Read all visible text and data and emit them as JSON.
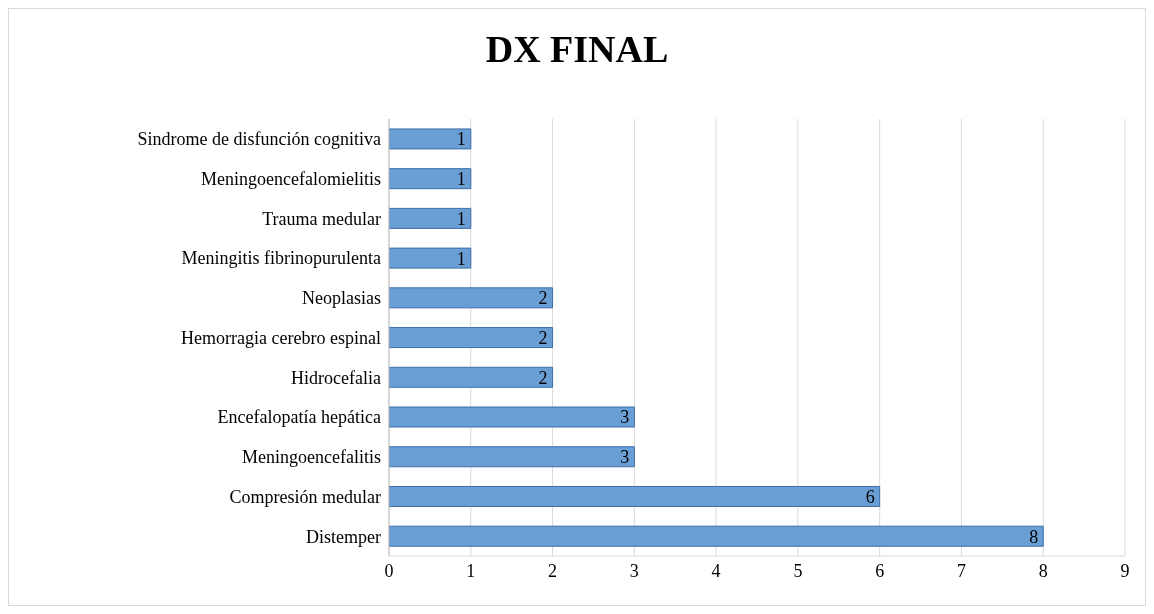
{
  "chart_data": {
    "type": "bar",
    "title": "DX FINAL",
    "orientation": "horizontal",
    "categories": [
      "Sindrome de disfunción cognitiva",
      "Meningoencefalomielitis",
      "Trauma medular",
      "Meningitis fibrinopurulenta",
      "Neoplasias",
      "Hemorragia cerebro espinal",
      "Hidrocefalia",
      "Encefalopatía hepática",
      "Meningoencefalitis",
      "Compresión medular",
      "Distemper"
    ],
    "values": [
      1,
      1,
      1,
      1,
      2,
      2,
      2,
      3,
      3,
      6,
      8
    ],
    "color": "#6a9fd6",
    "xlim": [
      0,
      9
    ],
    "xticks": [
      0,
      1,
      2,
      3,
      4,
      5,
      6,
      7,
      8,
      9
    ],
    "grid": "x",
    "data_labels": true
  }
}
